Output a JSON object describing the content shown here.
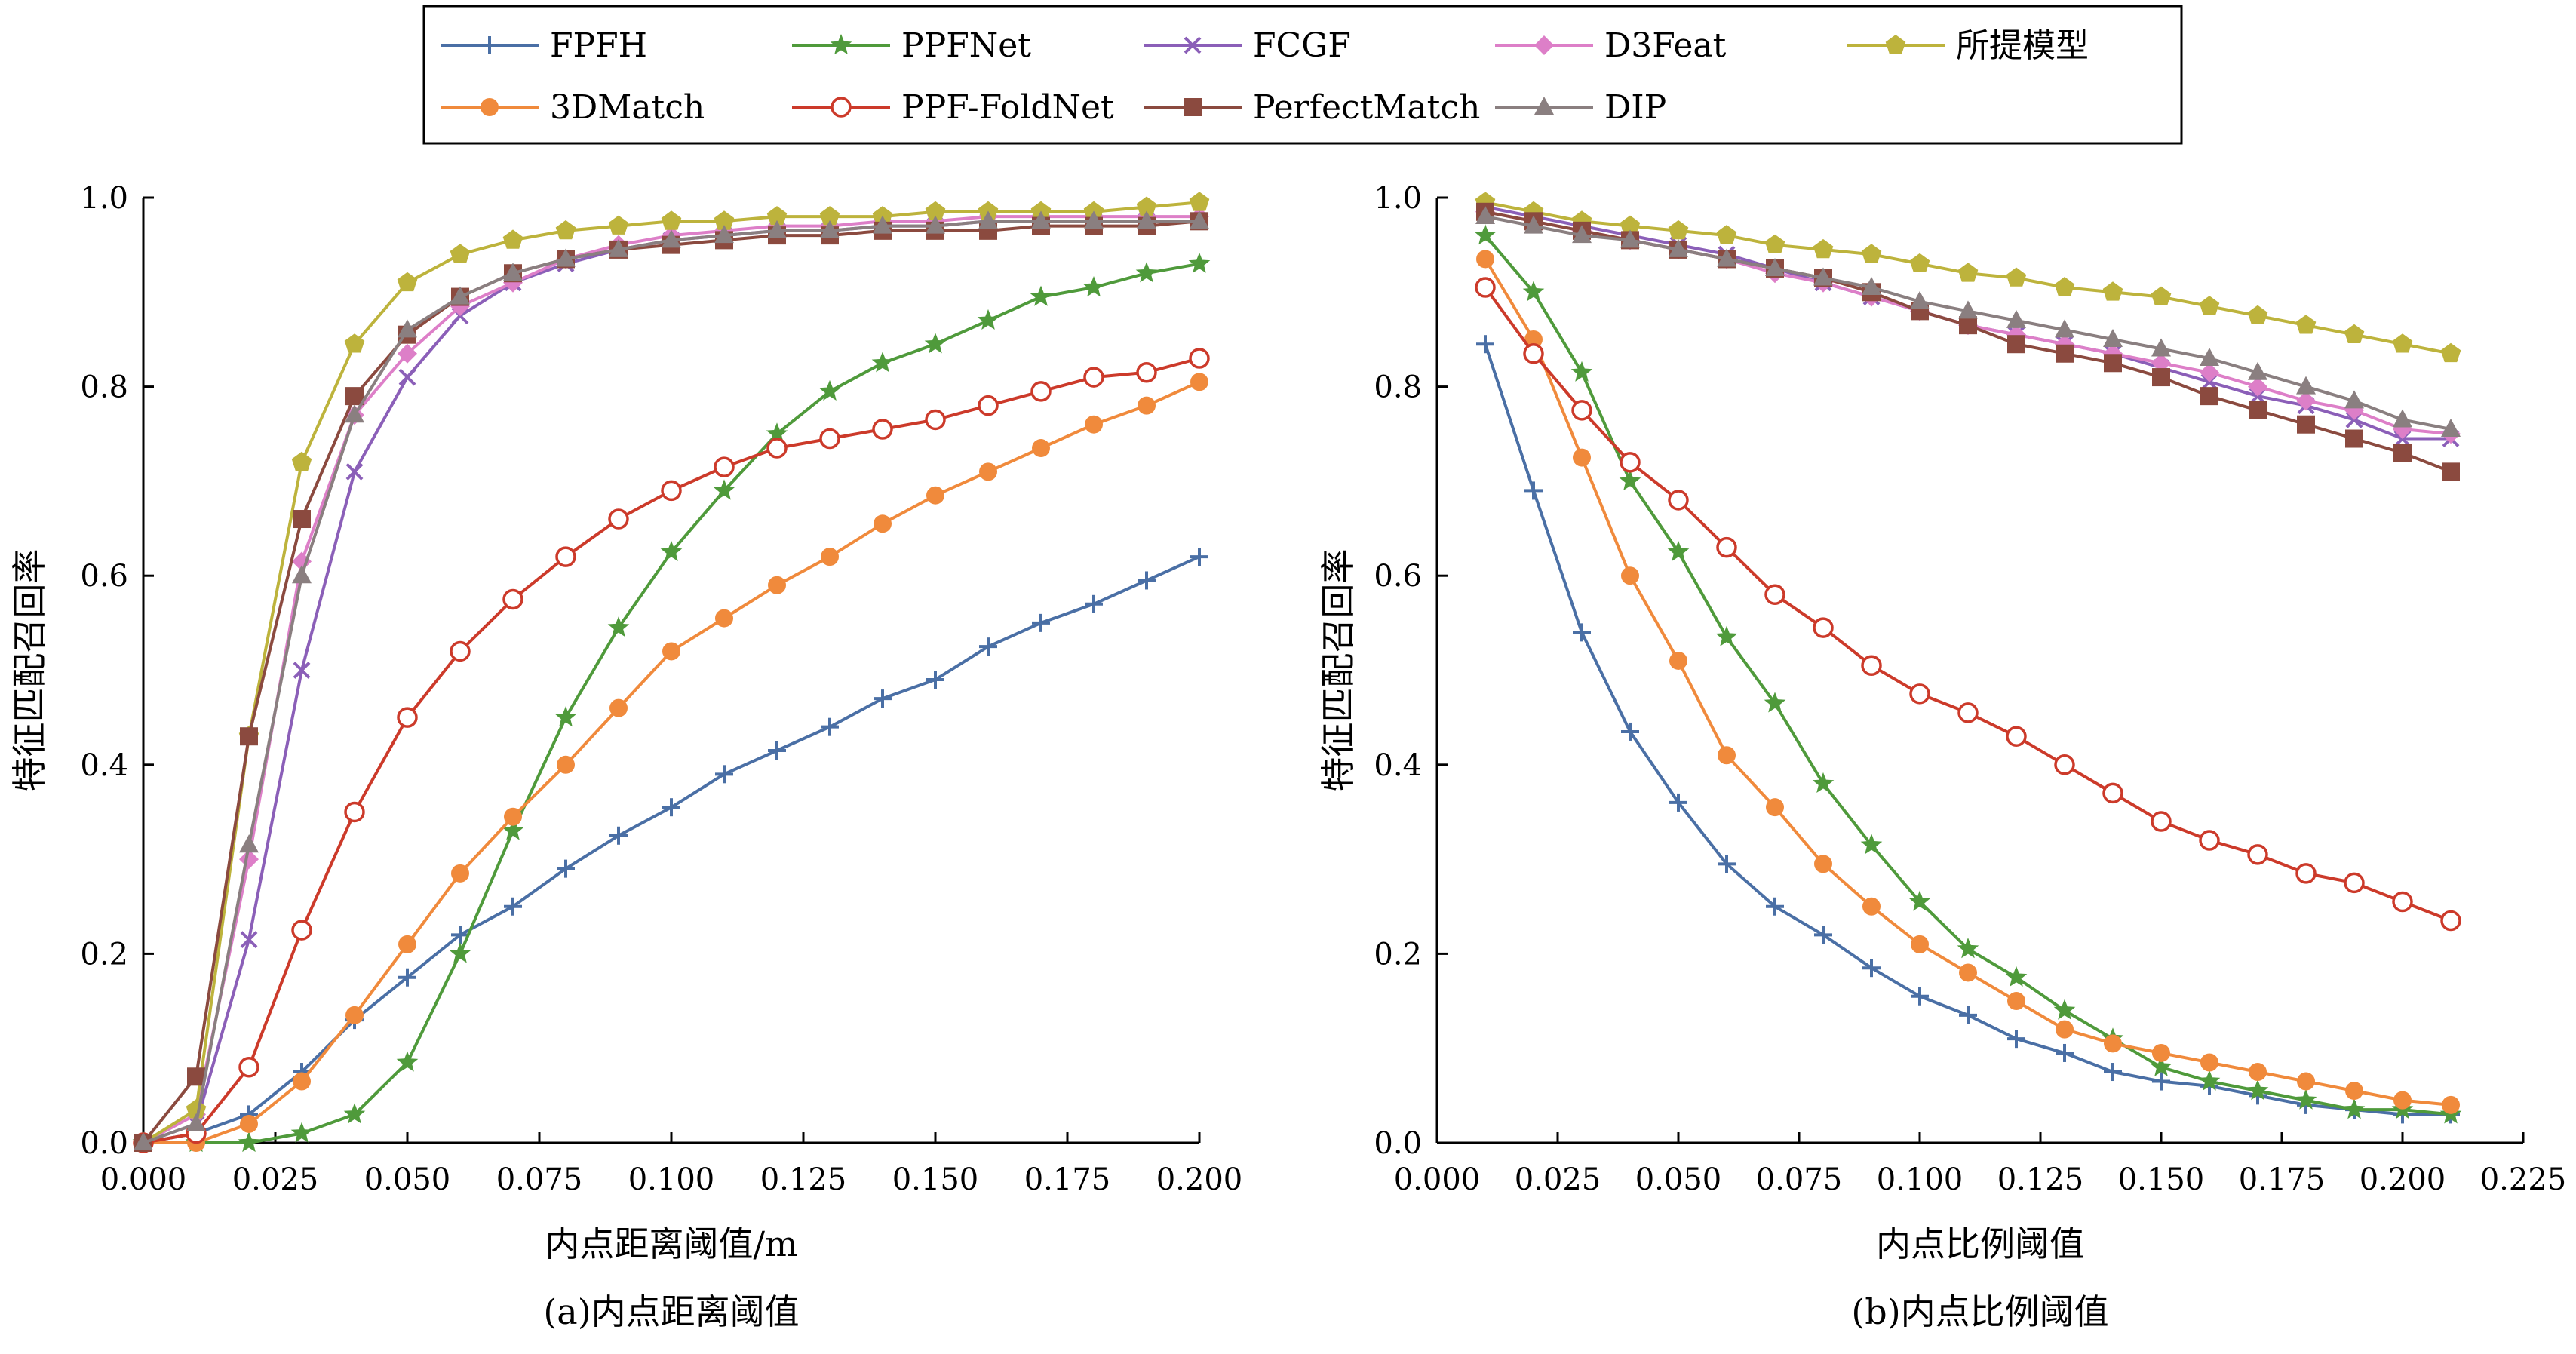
{
  "legend": {
    "columns": 5,
    "items": [
      {
        "name": "FPFH",
        "color": "#4a6fa5",
        "marker": "plus"
      },
      {
        "name": "PPFNet",
        "color": "#4f9a3b",
        "marker": "star"
      },
      {
        "name": "FCGF",
        "color": "#8b5fb8",
        "marker": "x"
      },
      {
        "name": "D3Feat",
        "color": "#dd7fc8",
        "marker": "diamond"
      },
      {
        "name": "所提模型",
        "color": "#bdb33c",
        "marker": "pentagon"
      },
      {
        "name": "3DMatch",
        "color": "#f08a3c",
        "marker": "circle"
      },
      {
        "name": "PPF-FoldNet",
        "color": "#cc3a2a",
        "marker": "circle-open"
      },
      {
        "name": "PerfectMatch",
        "color": "#8b4a3f",
        "marker": "square"
      },
      {
        "name": "DIP",
        "color": "#8a7f80",
        "marker": "triangle"
      }
    ]
  },
  "chart_data": [
    {
      "type": "line",
      "caption": "(a)内点距离阈值",
      "xlabel": "内点距离阈值/m",
      "ylabel": "特征匹配召回率",
      "xlim": [
        0,
        0.2
      ],
      "ylim": [
        0,
        1.0
      ],
      "xticks": [
        "0.000",
        "0.025",
        "0.050",
        "0.075",
        "0.100",
        "0.125",
        "0.150",
        "0.175",
        "0.200"
      ],
      "yticks": [
        "0.0",
        "0.2",
        "0.4",
        "0.6",
        "0.8",
        "1.0"
      ],
      "x": [
        0,
        0.01,
        0.02,
        0.03,
        0.04,
        0.05,
        0.06,
        0.07,
        0.08,
        0.09,
        0.1,
        0.11,
        0.12,
        0.13,
        0.14,
        0.15,
        0.16,
        0.17,
        0.18,
        0.19,
        0.2
      ],
      "series": [
        {
          "name": "FPFH",
          "values": [
            0,
            0.01,
            0.03,
            0.075,
            0.13,
            0.175,
            0.22,
            0.25,
            0.29,
            0.325,
            0.355,
            0.39,
            0.415,
            0.44,
            0.47,
            0.49,
            0.525,
            0.55,
            0.57,
            0.595,
            0.62
          ]
        },
        {
          "name": "PPFNet",
          "values": [
            0,
            0,
            0,
            0.01,
            0.03,
            0.085,
            0.2,
            0.33,
            0.45,
            0.545,
            0.625,
            0.69,
            0.75,
            0.795,
            0.825,
            0.845,
            0.87,
            0.895,
            0.905,
            0.92,
            0.93
          ]
        },
        {
          "name": "FCGF",
          "values": [
            0,
            0.02,
            0.215,
            0.5,
            0.71,
            0.81,
            0.875,
            0.91,
            0.93,
            0.945,
            0.955,
            0.96,
            0.965,
            0.965,
            0.97,
            0.97,
            0.975,
            0.975,
            0.975,
            0.975,
            0.975
          ]
        },
        {
          "name": "D3Feat",
          "values": [
            0,
            0.03,
            0.3,
            0.615,
            0.77,
            0.835,
            0.885,
            0.91,
            0.935,
            0.95,
            0.96,
            0.965,
            0.97,
            0.97,
            0.975,
            0.975,
            0.98,
            0.98,
            0.98,
            0.98,
            0.98
          ]
        },
        {
          "name": "所提模型",
          "values": [
            0,
            0.035,
            0.43,
            0.72,
            0.845,
            0.91,
            0.94,
            0.955,
            0.965,
            0.97,
            0.975,
            0.975,
            0.98,
            0.98,
            0.98,
            0.985,
            0.985,
            0.985,
            0.985,
            0.99,
            0.995
          ]
        },
        {
          "name": "3DMatch",
          "values": [
            0,
            0,
            0.02,
            0.065,
            0.135,
            0.21,
            0.285,
            0.345,
            0.4,
            0.46,
            0.52,
            0.555,
            0.59,
            0.62,
            0.655,
            0.685,
            0.71,
            0.735,
            0.76,
            0.78,
            0.805
          ]
        },
        {
          "name": "PPF-FoldNet",
          "values": [
            0,
            0.01,
            0.08,
            0.225,
            0.35,
            0.45,
            0.52,
            0.575,
            0.62,
            0.66,
            0.69,
            0.715,
            0.735,
            0.745,
            0.755,
            0.765,
            0.78,
            0.795,
            0.81,
            0.815,
            0.83
          ]
        },
        {
          "name": "PerfectMatch",
          "values": [
            0,
            0.07,
            0.43,
            0.66,
            0.79,
            0.855,
            0.895,
            0.92,
            0.935,
            0.945,
            0.95,
            0.955,
            0.96,
            0.96,
            0.965,
            0.965,
            0.965,
            0.97,
            0.97,
            0.97,
            0.975
          ]
        },
        {
          "name": "DIP",
          "values": [
            0,
            0.02,
            0.315,
            0.6,
            0.77,
            0.86,
            0.895,
            0.92,
            0.935,
            0.945,
            0.955,
            0.96,
            0.965,
            0.965,
            0.97,
            0.97,
            0.975,
            0.975,
            0.975,
            0.975,
            0.975
          ]
        }
      ]
    },
    {
      "type": "line",
      "caption": "(b)内点比例阈值",
      "xlabel": "内点比例阈值",
      "ylabel": "特征匹配召回率",
      "xlim": [
        0,
        0.225
      ],
      "ylim": [
        0,
        1.0
      ],
      "xticks": [
        "0.000",
        "0.025",
        "0.050",
        "0.075",
        "0.100",
        "0.125",
        "0.150",
        "0.175",
        "0.200",
        "0.225"
      ],
      "yticks": [
        "0.0",
        "0.2",
        "0.4",
        "0.6",
        "0.8",
        "1.0"
      ],
      "x": [
        0.01,
        0.02,
        0.03,
        0.04,
        0.05,
        0.06,
        0.07,
        0.08,
        0.09,
        0.1,
        0.11,
        0.12,
        0.13,
        0.14,
        0.15,
        0.16,
        0.17,
        0.18,
        0.19,
        0.2,
        0.21
      ],
      "series": [
        {
          "name": "FPFH",
          "values": [
            0.845,
            0.69,
            0.54,
            0.435,
            0.36,
            0.295,
            0.25,
            0.22,
            0.185,
            0.155,
            0.135,
            0.11,
            0.095,
            0.075,
            0.065,
            0.06,
            0.05,
            0.04,
            0.035,
            0.03,
            0.03
          ]
        },
        {
          "name": "PPFNet",
          "values": [
            0.96,
            0.9,
            0.815,
            0.7,
            0.625,
            0.535,
            0.465,
            0.38,
            0.315,
            0.255,
            0.205,
            0.175,
            0.14,
            0.11,
            0.08,
            0.065,
            0.055,
            0.045,
            0.035,
            0.035,
            0.03
          ]
        },
        {
          "name": "FCGF",
          "values": [
            0.99,
            0.98,
            0.97,
            0.96,
            0.95,
            0.94,
            0.925,
            0.91,
            0.895,
            0.88,
            0.865,
            0.855,
            0.845,
            0.835,
            0.82,
            0.805,
            0.79,
            0.78,
            0.765,
            0.745,
            0.745
          ]
        },
        {
          "name": "D3Feat",
          "values": [
            0.985,
            0.975,
            0.965,
            0.955,
            0.945,
            0.935,
            0.92,
            0.91,
            0.895,
            0.88,
            0.865,
            0.855,
            0.845,
            0.835,
            0.825,
            0.815,
            0.8,
            0.785,
            0.775,
            0.755,
            0.75
          ]
        },
        {
          "name": "所提模型",
          "values": [
            0.995,
            0.985,
            0.975,
            0.97,
            0.965,
            0.96,
            0.95,
            0.945,
            0.94,
            0.93,
            0.92,
            0.915,
            0.905,
            0.9,
            0.895,
            0.885,
            0.875,
            0.865,
            0.855,
            0.845,
            0.835
          ]
        },
        {
          "name": "3DMatch",
          "values": [
            0.935,
            0.85,
            0.725,
            0.6,
            0.51,
            0.41,
            0.355,
            0.295,
            0.25,
            0.21,
            0.18,
            0.15,
            0.12,
            0.105,
            0.095,
            0.085,
            0.075,
            0.065,
            0.055,
            0.045,
            0.04
          ]
        },
        {
          "name": "PPF-FoldNet",
          "values": [
            0.905,
            0.835,
            0.775,
            0.72,
            0.68,
            0.63,
            0.58,
            0.545,
            0.505,
            0.475,
            0.455,
            0.43,
            0.4,
            0.37,
            0.34,
            0.32,
            0.305,
            0.285,
            0.275,
            0.255,
            0.235
          ]
        },
        {
          "name": "PerfectMatch",
          "values": [
            0.985,
            0.975,
            0.965,
            0.955,
            0.945,
            0.935,
            0.925,
            0.915,
            0.9,
            0.88,
            0.865,
            0.845,
            0.835,
            0.825,
            0.81,
            0.79,
            0.775,
            0.76,
            0.745,
            0.73,
            0.71
          ]
        },
        {
          "name": "DIP",
          "values": [
            0.98,
            0.97,
            0.96,
            0.955,
            0.945,
            0.935,
            0.925,
            0.915,
            0.905,
            0.89,
            0.88,
            0.87,
            0.86,
            0.85,
            0.84,
            0.83,
            0.815,
            0.8,
            0.785,
            0.765,
            0.755
          ]
        }
      ]
    }
  ]
}
